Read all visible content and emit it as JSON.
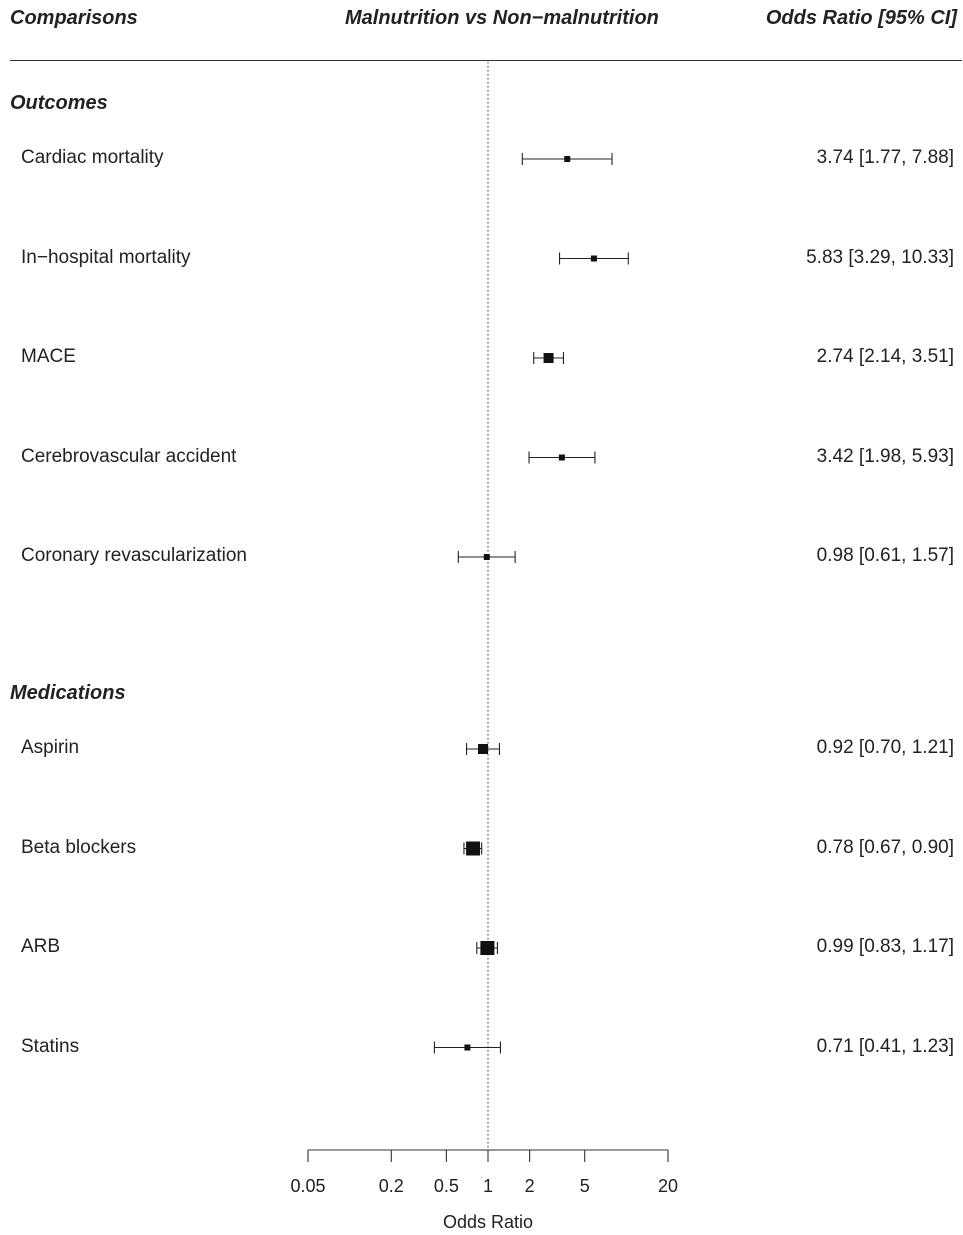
{
  "header": {
    "col1": "Comparisons",
    "col2": "Malnutrition vs Non−malnutrition",
    "col3": "Odds Ratio [95% CI]"
  },
  "chart_data": {
    "type": "forest",
    "x_scale": "log",
    "xlim": [
      0.05,
      20
    ],
    "xlabel": "Odds Ratio",
    "ticks": [
      0.05,
      0.2,
      0.5,
      1,
      2,
      5,
      20
    ],
    "tick_labels": [
      "0.05",
      "0.2",
      "0.5",
      "1",
      "2",
      "5",
      "20"
    ],
    "reference_line": 1,
    "sections": [
      {
        "title": "Outcomes",
        "rows": [
          {
            "label": "Cardiac mortality",
            "or": 3.74,
            "lo": 1.77,
            "hi": 7.88,
            "text": "3.74 [1.77,  7.88]",
            "weight": 1
          },
          {
            "label": "In−hospital mortality",
            "or": 5.83,
            "lo": 3.29,
            "hi": 10.33,
            "text": "5.83 [3.29, 10.33]",
            "weight": 1
          },
          {
            "label": "MACE",
            "or": 2.74,
            "lo": 2.14,
            "hi": 3.51,
            "text": "2.74 [2.14,  3.51]",
            "weight": 2
          },
          {
            "label": "Cerebrovascular accident",
            "or": 3.42,
            "lo": 1.98,
            "hi": 5.93,
            "text": "3.42 [1.98,  5.93]",
            "weight": 1
          },
          {
            "label": "Coronary revascularization",
            "or": 0.98,
            "lo": 0.61,
            "hi": 1.57,
            "text": "0.98 [0.61,  1.57]",
            "weight": 1
          }
        ]
      },
      {
        "title": "Medications",
        "rows": [
          {
            "label": "Aspirin",
            "or": 0.92,
            "lo": 0.7,
            "hi": 1.21,
            "text": "0.92 [0.70,  1.21]",
            "weight": 2
          },
          {
            "label": "Beta blockers",
            "or": 0.78,
            "lo": 0.67,
            "hi": 0.9,
            "text": "0.78 [0.67,  0.90]",
            "weight": 3
          },
          {
            "label": "ARB",
            "or": 0.99,
            "lo": 0.83,
            "hi": 1.17,
            "text": "0.99 [0.83,  1.17]",
            "weight": 3
          },
          {
            "label": "Statins",
            "or": 0.71,
            "lo": 0.41,
            "hi": 1.23,
            "text": "0.71 [0.41,  1.23]",
            "weight": 1
          }
        ]
      }
    ]
  }
}
